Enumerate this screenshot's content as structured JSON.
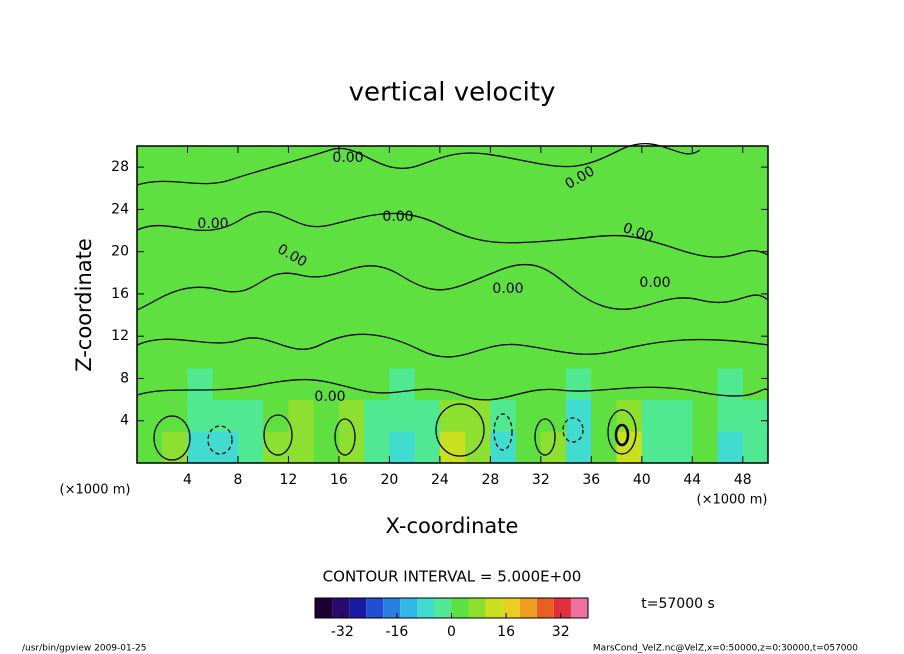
{
  "chart_data": {
    "type": "contour",
    "title": "vertical velocity",
    "x_label": "X-coordinate",
    "y_label": "Z-coordinate",
    "x_unit": "(×1000 m)",
    "y_unit": "(×1000 m)",
    "xlim": [
      0,
      50
    ],
    "ylim": [
      0,
      30
    ],
    "xticks": [
      4,
      8,
      12,
      16,
      20,
      24,
      28,
      32,
      36,
      40,
      44,
      48
    ],
    "yticks": [
      4,
      8,
      12,
      16,
      20,
      24,
      28
    ],
    "field": {
      "x_edges": [
        0,
        2,
        4,
        6,
        8,
        10,
        12,
        14,
        16,
        18,
        20,
        22,
        24,
        26,
        28,
        30,
        32,
        34,
        36,
        38,
        40,
        42,
        44,
        46,
        48,
        50
      ],
      "z_edges": [
        0,
        3,
        6,
        9,
        30
      ],
      "values": [
        [
          2,
          6,
          -6,
          -8,
          -3,
          6,
          8,
          3,
          8,
          -4,
          -7,
          -3,
          10,
          8,
          -8,
          3,
          6,
          -10,
          4,
          10,
          -2,
          -5,
          2,
          -7,
          -5
        ],
        [
          1,
          4,
          -3,
          -5,
          -1,
          4,
          6,
          2,
          5,
          -2,
          -5,
          -1,
          8,
          6,
          -5,
          2,
          3,
          -7,
          3,
          7,
          -1,
          -3,
          1,
          -4,
          -3
        ],
        [
          1,
          1,
          -1,
          1,
          1,
          1,
          2,
          1,
          1,
          1,
          -1,
          1,
          3,
          2,
          1,
          1,
          1,
          -1,
          1,
          2,
          1,
          1,
          1,
          -1,
          1
        ],
        [
          0,
          0,
          0,
          0,
          0,
          0,
          0,
          0,
          0,
          0,
          0,
          0,
          0,
          0,
          0,
          0,
          0,
          0,
          0,
          0,
          0,
          0,
          0,
          0,
          0
        ]
      ]
    },
    "contour_labels": [
      "0.00",
      "0.00",
      "0.00",
      "0.00",
      "0.00",
      "0.00",
      "0.00",
      "0.00",
      "0.00"
    ],
    "contour_interval_text": "CONTOUR INTERVAL = 5.000E+00",
    "time_text": "t=57000 s",
    "colorbar": {
      "levels": [
        -40,
        -35,
        -30,
        -25,
        -20,
        -15,
        -10,
        -5,
        0,
        5,
        10,
        15,
        20,
        25,
        30,
        35,
        40
      ],
      "ticks": [
        -32,
        -16,
        0,
        16,
        32
      ],
      "colors": [
        "#1a0033",
        "#2a0a6b",
        "#1a1aa0",
        "#1f4fd0",
        "#2a80e0",
        "#30b8e8",
        "#40dcd0",
        "#50e890",
        "#5ee040",
        "#8ee030",
        "#c8e020",
        "#e8d020",
        "#f0a020",
        "#e86020",
        "#e03040",
        "#f070a0"
      ]
    },
    "footer_left": "/usr/bin/gpview  2009-01-25",
    "footer_right": "MarsCond_VelZ.nc@VelZ,x=0:50000,z=0:30000,t=057000"
  }
}
